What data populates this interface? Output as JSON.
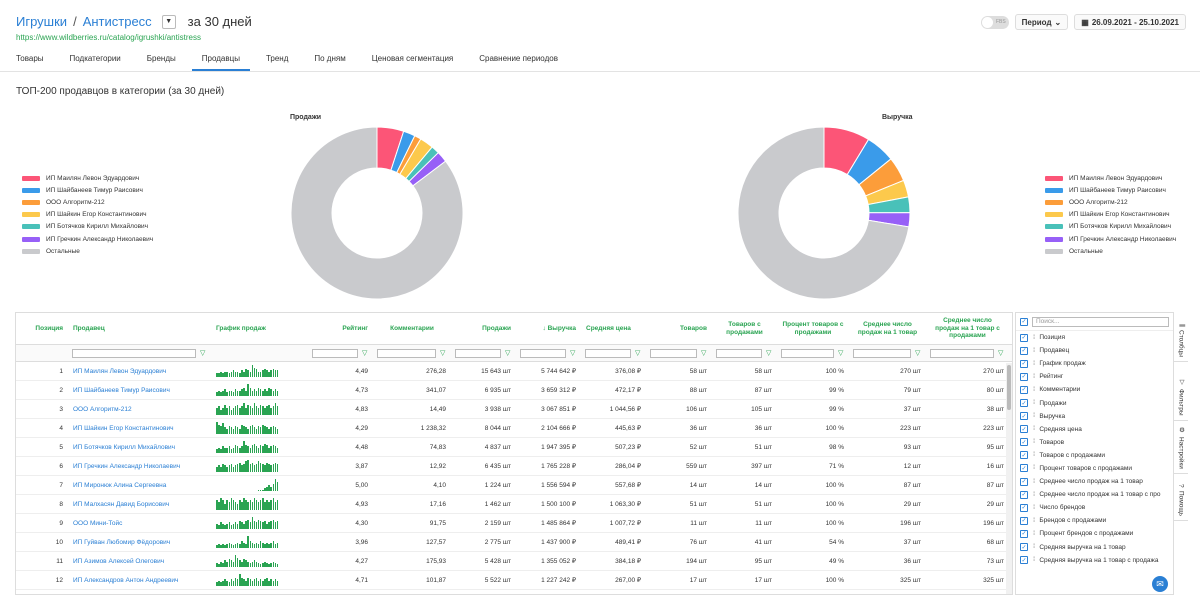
{
  "header": {
    "crumb_category": "Игрушки",
    "crumb_separator": "/",
    "crumb_subcategory": "Антистресс",
    "period_text": "за 30 дней",
    "url": "https://www.wildberries.ru/catalog/igrushki/antistress",
    "fbs_label": "FBS",
    "period_button": "Период",
    "date_range": "26.09.2021 - 25.10.2021"
  },
  "tabs": [
    "Товары",
    "Подкатегории",
    "Бренды",
    "Продавцы",
    "Тренд",
    "По дням",
    "Ценовая сегментация",
    "Сравнение периодов"
  ],
  "active_tab": "Продавцы",
  "section_title": "ТОП-200 продавцов в категории (за 30 дней)",
  "charts": {
    "sales_title": "Продажи",
    "revenue_title": "Выручка"
  },
  "legend": [
    {
      "label": "ИП Маилян Левон Эдуардович",
      "color": "#fc5577"
    },
    {
      "label": "ИП Шайбанеев Тимур Раисович",
      "color": "#3a9bea"
    },
    {
      "label": "ООО Алгоритм-212",
      "color": "#fc9d3a"
    },
    {
      "label": "ИП Шайкин Егор Константинович",
      "color": "#fcc94c"
    },
    {
      "label": "ИП Ботячков Кирилл Михайлович",
      "color": "#49c1b9"
    },
    {
      "label": "ИП Гречкин Александр Николаевич",
      "color": "#9760f7"
    },
    {
      "label": "Остальные",
      "color": "#c9cacd"
    }
  ],
  "chart_data": [
    {
      "type": "pie",
      "title": "Продажи",
      "labels": [
        "ИП Маилян Левон Эдуардович",
        "ИП Шайбанеев Тимур Раисович",
        "ООО Алгоритм-212",
        "ИП Шайкин Егор Константинович",
        "ИП Ботячков Кирилл Михайлович",
        "ИП Гречкин Александр Николаевич",
        "Остальные"
      ],
      "values": [
        15643,
        6935,
        3938,
        8044,
        4837,
        6435,
        266000
      ]
    },
    {
      "type": "pie",
      "title": "Выручка",
      "labels": [
        "ИП Маилян Левон Эдуардович",
        "ИП Шайбанеев Тимур Раисович",
        "ООО Алгоритм-212",
        "ИП Шайкин Егор Константинович",
        "ИП Ботячков Кирилл Михайлович",
        "ИП Гречкин Александр Николаевич",
        "Остальные"
      ],
      "values": [
        5744642,
        3659312,
        3067851,
        2104666,
        1947395,
        1765228,
        48000000
      ]
    }
  ],
  "table": {
    "headers": {
      "position": "Позиция",
      "seller": "Продавец",
      "graph": "График продаж",
      "rating": "Рейтинг",
      "comments": "Комментарии",
      "sales": "Продажи",
      "revenue": "↓ Выручка",
      "avg_price": "Средняя цена",
      "goods": "Товаров",
      "goods_sales": "Товаров с продажами",
      "pct_goods": "Процент товаров с продажами",
      "avg_per_good": "Среднее число продаж на 1 товар",
      "avg_per_good_sales": "Среднее число продаж на 1 товар с продажами"
    },
    "rows": [
      {
        "pos": "1",
        "seller": "ИП Маилян Левон Эдуардович",
        "rating": "4,49",
        "comments": "276,28",
        "sales": "15 643 шт",
        "revenue": "5 744 642 ₽",
        "avg_price": "376,08 ₽",
        "goods": "58 шт",
        "goods_sales": "58 шт",
        "pct": "100 %",
        "avg1": "270 шт",
        "avg2": "270 шт",
        "spark": [
          3,
          3,
          4,
          3,
          4,
          4,
          3,
          4,
          5,
          4,
          4,
          3,
          5,
          4,
          6,
          5,
          4,
          9,
          7,
          6,
          4,
          4,
          5,
          6,
          5,
          4,
          5,
          6,
          5,
          5
        ]
      },
      {
        "pos": "2",
        "seller": "ИП Шайбанеев Тимур Раисович",
        "rating": "4,73",
        "comments": "341,07",
        "sales": "6 935 шт",
        "revenue": "3 659 312 ₽",
        "avg_price": "472,17 ₽",
        "goods": "88 шт",
        "goods_sales": "87 шт",
        "pct": "99 %",
        "avg1": "79 шт",
        "avg2": "80 шт",
        "spark": [
          3,
          4,
          3,
          4,
          5,
          3,
          4,
          4,
          3,
          5,
          4,
          4,
          5,
          6,
          4,
          9,
          6,
          4,
          5,
          4,
          6,
          5,
          4,
          5,
          4,
          6,
          5,
          4,
          5,
          4
        ]
      },
      {
        "pos": "3",
        "seller": "ООО Алгоритм-212",
        "rating": "4,83",
        "comments": "14,49",
        "sales": "3 938 шт",
        "revenue": "3 067 851 ₽",
        "avg_price": "1 044,56 ₽",
        "goods": "106 шт",
        "goods_sales": "105 шт",
        "pct": "99 %",
        "avg1": "37 шт",
        "avg2": "38 шт",
        "spark": [
          4,
          5,
          3,
          4,
          6,
          4,
          5,
          3,
          4,
          5,
          6,
          4,
          5,
          7,
          4,
          6,
          5,
          4,
          7,
          5,
          4,
          6,
          5,
          4,
          5,
          6,
          4,
          5,
          7,
          5
        ]
      },
      {
        "pos": "4",
        "seller": "ИП Шайкин Егор Константинович",
        "rating": "4,29",
        "comments": "1 238,32",
        "sales": "8 044 шт",
        "revenue": "2 104 666 ₽",
        "avg_price": "445,63 ₽",
        "goods": "36 шт",
        "goods_sales": "36 шт",
        "pct": "100 %",
        "avg1": "223 шт",
        "avg2": "223 шт",
        "spark": [
          9,
          7,
          6,
          8,
          5,
          4,
          6,
          5,
          4,
          6,
          5,
          4,
          7,
          6,
          5,
          4,
          6,
          7,
          5,
          4,
          6,
          5,
          7,
          6,
          5,
          4,
          5,
          6,
          5,
          4
        ]
      },
      {
        "pos": "5",
        "seller": "ИП Ботячков Кирилл Михайлович",
        "rating": "4,48",
        "comments": "74,83",
        "sales": "4 837 шт",
        "revenue": "1 947 395 ₽",
        "avg_price": "507,23 ₽",
        "goods": "52 шт",
        "goods_sales": "51 шт",
        "pct": "98 %",
        "avg1": "93 шт",
        "avg2": "95 шт",
        "spark": [
          3,
          4,
          3,
          5,
          4,
          4,
          5,
          3,
          4,
          6,
          5,
          4,
          5,
          9,
          6,
          5,
          4,
          6,
          7,
          5,
          4,
          6,
          5,
          7,
          6,
          4,
          5,
          6,
          5,
          4
        ]
      },
      {
        "pos": "6",
        "seller": "ИП Гречкин Александр Николаевич",
        "rating": "3,87",
        "comments": "12,92",
        "sales": "6 435 шт",
        "revenue": "1 765 228 ₽",
        "avg_price": "286,04 ₽",
        "goods": "559 шт",
        "goods_sales": "397 шт",
        "pct": "71 %",
        "avg1": "12 шт",
        "avg2": "16 шт",
        "spark": [
          4,
          5,
          4,
          6,
          5,
          4,
          5,
          6,
          4,
          5,
          6,
          7,
          5,
          6,
          8,
          9,
          6,
          7,
          5,
          6,
          8,
          7,
          6,
          5,
          7,
          6,
          5,
          6,
          7,
          6
        ]
      },
      {
        "pos": "7",
        "seller": "ИП Миронюк Алина Сергеевна",
        "rating": "5,00",
        "comments": "4,10",
        "sales": "1 224 шт",
        "revenue": "1 556 594 ₽",
        "avg_price": "557,68 ₽",
        "goods": "14 шт",
        "goods_sales": "14 шт",
        "pct": "100 %",
        "avg1": "87 шт",
        "avg2": "87 шт",
        "spark": [
          0,
          0,
          0,
          0,
          0,
          0,
          0,
          0,
          0,
          0,
          0,
          0,
          0,
          0,
          0,
          0,
          0,
          0,
          0,
          0,
          1,
          1,
          1,
          2,
          3,
          4,
          3,
          5,
          8,
          6
        ]
      },
      {
        "pos": "8",
        "seller": "ИП Малхасян Давид Борисович",
        "rating": "4,93",
        "comments": "17,16",
        "sales": "1 462 шт",
        "revenue": "1 500 100 ₽",
        "avg_price": "1 063,30 ₽",
        "goods": "51 шт",
        "goods_sales": "51 шт",
        "pct": "100 %",
        "avg1": "29 шт",
        "avg2": "29 шт",
        "spark": [
          5,
          4,
          6,
          5,
          3,
          5,
          4,
          6,
          5,
          4,
          3,
          5,
          4,
          6,
          5,
          4,
          5,
          4,
          6,
          5,
          4,
          5,
          6,
          4,
          5,
          4,
          5,
          6,
          4,
          5
        ]
      },
      {
        "pos": "9",
        "seller": "ООО Мини-Тойс",
        "rating": "4,30",
        "comments": "91,75",
        "sales": "2 159 шт",
        "revenue": "1 485 864 ₽",
        "avg_price": "1 007,72 ₽",
        "goods": "11 шт",
        "goods_sales": "11 шт",
        "pct": "100 %",
        "avg1": "196 шт",
        "avg2": "196 шт",
        "spark": [
          4,
          3,
          5,
          4,
          3,
          4,
          5,
          3,
          4,
          5,
          4,
          6,
          5,
          4,
          6,
          7,
          5,
          9,
          6,
          5,
          7,
          6,
          5,
          6,
          4,
          5,
          6,
          7,
          5,
          6
        ]
      },
      {
        "pos": "10",
        "seller": "ИП Гуйван Любомир Фёдорович",
        "rating": "3,96",
        "comments": "127,57",
        "sales": "2 775 шт",
        "revenue": "1 437 900 ₽",
        "avg_price": "489,41 ₽",
        "goods": "76 шт",
        "goods_sales": "41 шт",
        "pct": "54 %",
        "avg1": "37 шт",
        "avg2": "68 шт",
        "spark": [
          2,
          3,
          2,
          3,
          2,
          3,
          4,
          3,
          2,
          3,
          4,
          3,
          5,
          4,
          3,
          9,
          5,
          4,
          3,
          4,
          3,
          5,
          4,
          3,
          4,
          3,
          4,
          5,
          3,
          4
        ]
      },
      {
        "pos": "11",
        "seller": "ИП Азимов Алексей Олегович",
        "rating": "4,27",
        "comments": "175,93",
        "sales": "5 428 шт",
        "revenue": "1 355 052 ₽",
        "avg_price": "384,18 ₽",
        "goods": "194 шт",
        "goods_sales": "95 шт",
        "pct": "49 %",
        "avg1": "36 шт",
        "avg2": "73 шт",
        "spark": [
          3,
          2,
          4,
          3,
          5,
          4,
          6,
          5,
          4,
          9,
          7,
          5,
          4,
          6,
          5,
          4,
          3,
          4,
          5,
          4,
          3,
          2,
          3,
          4,
          3,
          2,
          3,
          4,
          3,
          2
        ]
      },
      {
        "pos": "12",
        "seller": "ИП Александров Антон Андреевич",
        "rating": "4,71",
        "comments": "101,87",
        "sales": "5 522 шт",
        "revenue": "1 227 242 ₽",
        "avg_price": "267,00 ₽",
        "goods": "17 шт",
        "goods_sales": "17 шт",
        "pct": "100 %",
        "avg1": "325 шт",
        "avg2": "325 шт",
        "spark": [
          3,
          4,
          3,
          4,
          5,
          4,
          3,
          5,
          4,
          6,
          5,
          9,
          6,
          5,
          4,
          6,
          5,
          4,
          5,
          6,
          4,
          5,
          4,
          5,
          6,
          4,
          5,
          4,
          5,
          4
        ]
      }
    ]
  },
  "columns_panel": {
    "search_placeholder": "Поиск...",
    "items": [
      "Позиция",
      "Продавец",
      "График продаж",
      "Рейтинг",
      "Комментарии",
      "Продажи",
      "Выручка",
      "Средняя цена",
      "Товаров",
      "Товаров с продажами",
      "Процент товаров с продажами",
      "Среднее число продаж на 1 товар",
      "Среднее число продаж на 1 товар с про",
      "Число брендов",
      "Брендов с продажами",
      "Процент брендов с продажами",
      "Средняя выручка на 1 товар",
      "Средняя выручка на 1 товар с продажа"
    ]
  },
  "side_tabs": [
    "Столбцы",
    "Фильтры",
    "Настройки",
    "Помощь"
  ]
}
